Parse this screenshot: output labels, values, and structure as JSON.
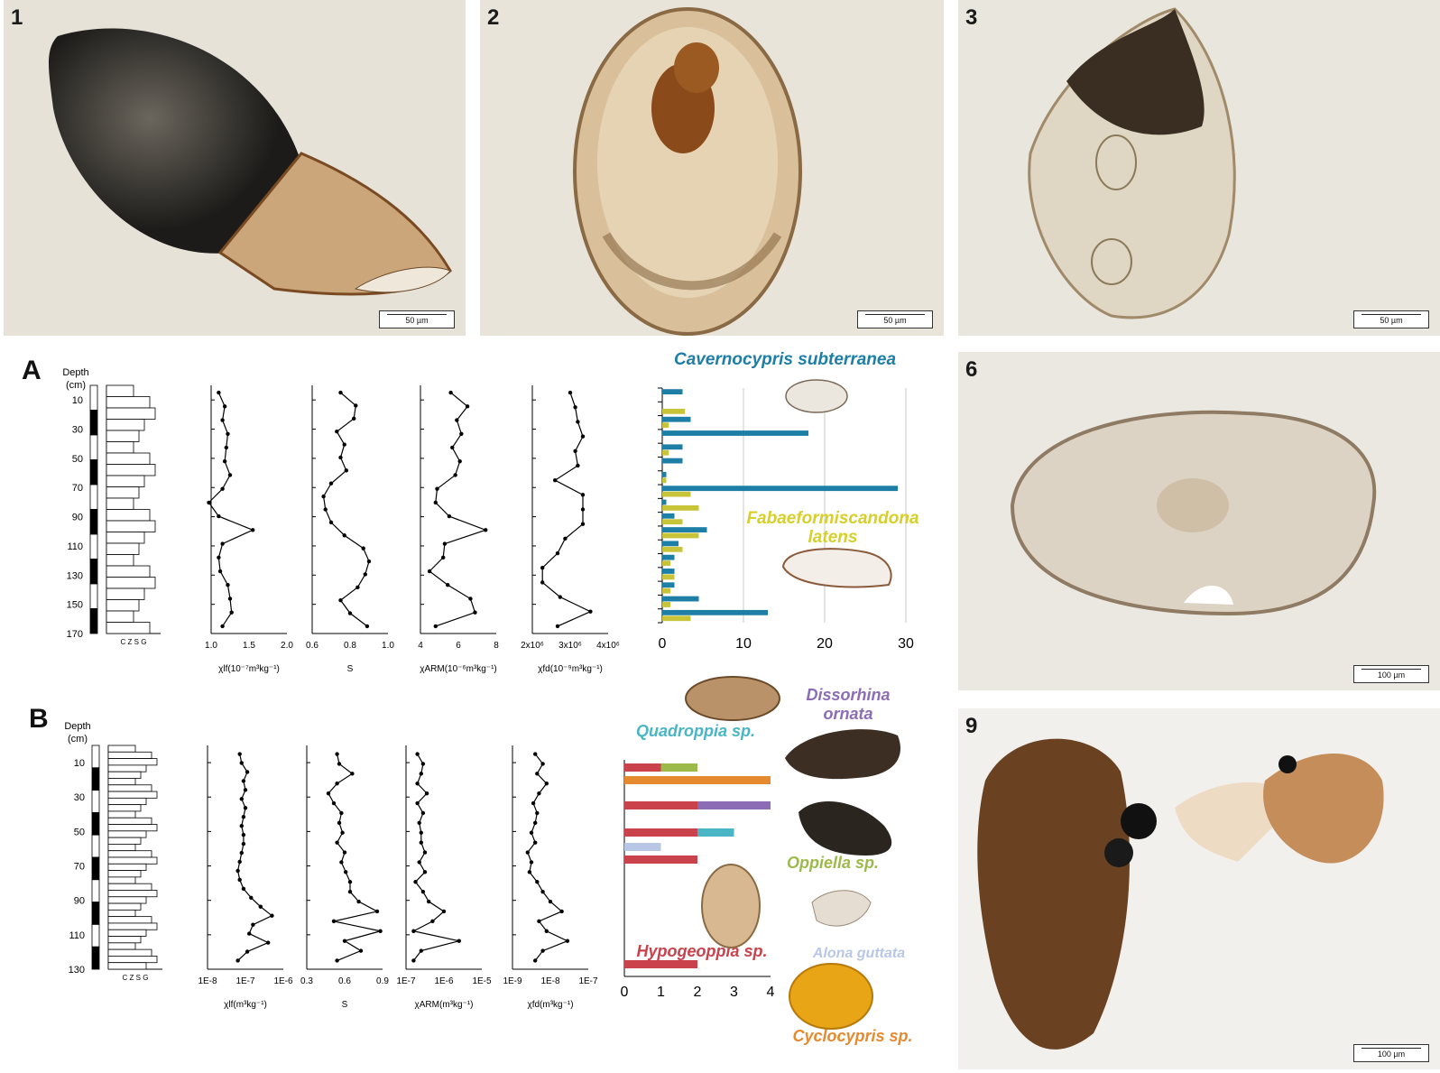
{
  "photos": [
    {
      "id": "1",
      "scale": "50 µm"
    },
    {
      "id": "2",
      "scale": "50 µm"
    },
    {
      "id": "3",
      "scale": "50 µm"
    },
    {
      "id": "6",
      "scale": "100 µm"
    },
    {
      "id": "9",
      "scale": "100 µm"
    }
  ],
  "panelA": {
    "label": "A",
    "depth_title": [
      "Depth",
      "(cm)"
    ],
    "depth_ticks": [
      10,
      30,
      50,
      70,
      90,
      110,
      130,
      150,
      170
    ],
    "litho_axis": "C Z S G",
    "profiles": [
      {
        "xlabel": "χlf(10⁻⁷m³kg⁻¹)",
        "ticks": [
          "1.0",
          "1.5",
          "2.0"
        ],
        "min": 1.0,
        "max": 2.0,
        "values": [
          1.1,
          1.18,
          1.15,
          1.22,
          1.2,
          1.18,
          1.25,
          1.15,
          0.97,
          1.1,
          1.55,
          1.15,
          1.1,
          1.12,
          1.22,
          1.25,
          1.27,
          1.15
        ]
      },
      {
        "xlabel": "S",
        "ticks": [
          "0.6",
          "0.8",
          "1.0"
        ],
        "min": 0.6,
        "max": 1.0,
        "values": [
          0.75,
          0.83,
          0.82,
          0.73,
          0.77,
          0.75,
          0.78,
          0.7,
          0.66,
          0.67,
          0.7,
          0.77,
          0.87,
          0.9,
          0.88,
          0.84,
          0.75,
          0.8,
          0.89
        ]
      },
      {
        "xlabel": "χARM(10⁻⁶m³kg⁻¹)",
        "ticks": [
          "4",
          "6",
          "8"
        ],
        "min": 4,
        "max": 9,
        "values": [
          6.0,
          7.1,
          6.4,
          6.7,
          6.1,
          6.6,
          6.3,
          5.1,
          5.0,
          5.9,
          8.3,
          5.6,
          5.5,
          4.6,
          5.8,
          7.3,
          7.6,
          5.0
        ]
      },
      {
        "xlabel": "χfd(10⁻⁹m³kg⁻¹)",
        "ticks": [
          "2x10⁶",
          "3x10⁶",
          "4x10⁶"
        ],
        "min": 1.5,
        "max": 4.5,
        "values": [
          3.0,
          3.2,
          3.3,
          3.5,
          3.2,
          3.3,
          2.4,
          3.5,
          3.5,
          3.5,
          2.8,
          2.5,
          1.9,
          1.9,
          2.6,
          3.8,
          2.5
        ]
      }
    ],
    "bar_chart": {
      "ticks": [
        "0",
        "10",
        "20",
        "30"
      ],
      "max": 30,
      "series": [
        {
          "name": "Cavernocypris subterranea",
          "color": "#1d7ea6",
          "values": [
            2.5,
            0,
            3.5,
            18,
            2.5,
            2.5,
            0.5,
            29,
            0.5,
            1.5,
            5.5,
            2.0,
            1.5,
            1.5,
            1.5,
            4.5,
            13
          ]
        },
        {
          "name": "Fabaeformiscandona latens",
          "color": "#c8c43a",
          "values": [
            0,
            2.8,
            0.8,
            0,
            0.8,
            0,
            0.5,
            3.5,
            4.5,
            2.5,
            4.5,
            2.5,
            1.0,
            1.5,
            1.0,
            1.0,
            3.5
          ]
        }
      ],
      "species": [
        {
          "lines": [
            "Cavernocypris subterranea"
          ],
          "color": "#1d7ea6"
        },
        {
          "lines": [
            "Fabaeformiscandona",
            "latens"
          ],
          "color": "#d7cf2a"
        }
      ]
    }
  },
  "panelB": {
    "label": "B",
    "depth_title": [
      "Depth",
      "(cm)"
    ],
    "depth_ticks": [
      10,
      30,
      50,
      70,
      90,
      110,
      130
    ],
    "litho_axis": "C Z S G",
    "profiles": [
      {
        "xlabel": "χlf(m³kg⁻¹)",
        "ticks": [
          "1E-8",
          "1E-7",
          "1E-6"
        ],
        "log": true,
        "min": -8,
        "max": -6,
        "values": [
          -7.15,
          -7.1,
          -6.95,
          -7.05,
          -7.0,
          -7.1,
          -7.0,
          -7.05,
          -7.1,
          -7.05,
          -7.05,
          -7.1,
          -7.15,
          -7.2,
          -7.15,
          -7.05,
          -6.85,
          -6.6,
          -6.3,
          -6.8,
          -6.9,
          -6.4,
          -6.95,
          -7.2
        ]
      },
      {
        "xlabel": "S",
        "ticks": [
          "0.3",
          "0.6",
          "0.9"
        ],
        "min": 0.3,
        "max": 1.0,
        "values": [
          0.58,
          0.6,
          0.72,
          0.58,
          0.5,
          0.55,
          0.62,
          0.6,
          0.63,
          0.58,
          0.65,
          0.62,
          0.66,
          0.7,
          0.7,
          0.78,
          0.95,
          0.55,
          0.98,
          0.65,
          0.8,
          0.58
        ]
      },
      {
        "xlabel": "χARM(m³kg⁻¹)",
        "ticks": [
          "1E-7",
          "1E-6",
          "1E-5"
        ],
        "log": true,
        "min": -7,
        "max": -5,
        "values": [
          -6.7,
          -6.55,
          -6.6,
          -6.7,
          -6.45,
          -6.7,
          -6.55,
          -6.65,
          -6.6,
          -6.6,
          -6.5,
          -6.65,
          -6.5,
          -6.75,
          -6.55,
          -6.4,
          -6.0,
          -6.3,
          -6.8,
          -5.6,
          -6.6,
          -6.8
        ]
      },
      {
        "xlabel": "χfd(m³kg⁻¹)",
        "ticks": [
          "1E-9",
          "1E-8",
          "1E-7"
        ],
        "log": true,
        "min": -9,
        "max": -7,
        "values": [
          -8.4,
          -8.2,
          -8.35,
          -8.1,
          -8.3,
          -8.45,
          -8.35,
          -8.4,
          -8.5,
          -8.4,
          -8.6,
          -8.5,
          -8.55,
          -8.35,
          -8.2,
          -8.0,
          -7.7,
          -8.3,
          -8.1,
          -7.55,
          -8.2,
          -8.4
        ]
      }
    ],
    "bar_chart": {
      "ticks": [
        "0",
        "1",
        "2",
        "3",
        "4"
      ],
      "max": 4,
      "series": [
        {
          "name": "Hypogeoppia sp.",
          "color": "#c9424c"
        },
        {
          "name": "Oppiella sp.",
          "color": "#9cba4a"
        },
        {
          "name": "Cyclocypris sp.",
          "color": "#e58a2f"
        },
        {
          "name": "Dissorhina ornata",
          "color": "#8c6db5"
        },
        {
          "name": "Quadroppia sp.",
          "color": "#4ab5c4"
        },
        {
          "name": "Alona guttata",
          "color": "#b9c7e6"
        }
      ],
      "rows": [
        {
          "segments": [
            {
              "s": 0,
              "v": 1
            },
            {
              "s": 1,
              "v": 1
            }
          ]
        },
        {
          "segments": [
            {
              "s": 2,
              "v": 4
            }
          ]
        },
        {
          "segments": [
            {
              "s": 0,
              "v": 2
            },
            {
              "s": 3,
              "v": 2
            }
          ]
        },
        {
          "segments": [
            {
              "s": 0,
              "v": 2
            },
            {
              "s": 4,
              "v": 1
            }
          ]
        },
        {
          "segments": [
            {
              "s": 5,
              "v": 1
            }
          ]
        },
        {
          "segments": [
            {
              "s": 0,
              "v": 2
            }
          ]
        },
        {
          "segments": [
            {
              "s": 0,
              "v": 2
            }
          ]
        }
      ],
      "species": [
        {
          "lines": [
            "Quadroppia sp."
          ],
          "color": "#4ab5c4"
        },
        {
          "lines": [
            "Dissorhina",
            "ornata"
          ],
          "color": "#8c6db5"
        },
        {
          "lines": [
            "Oppiella sp."
          ],
          "color": "#9cba4a"
        },
        {
          "lines": [
            "Alona guttata"
          ],
          "color": "#b9c7e6"
        },
        {
          "lines": [
            "Hypogeoppia sp."
          ],
          "color": "#c9424c"
        },
        {
          "lines": [
            "Cyclocypris sp."
          ],
          "color": "#e58a2f"
        }
      ]
    }
  }
}
